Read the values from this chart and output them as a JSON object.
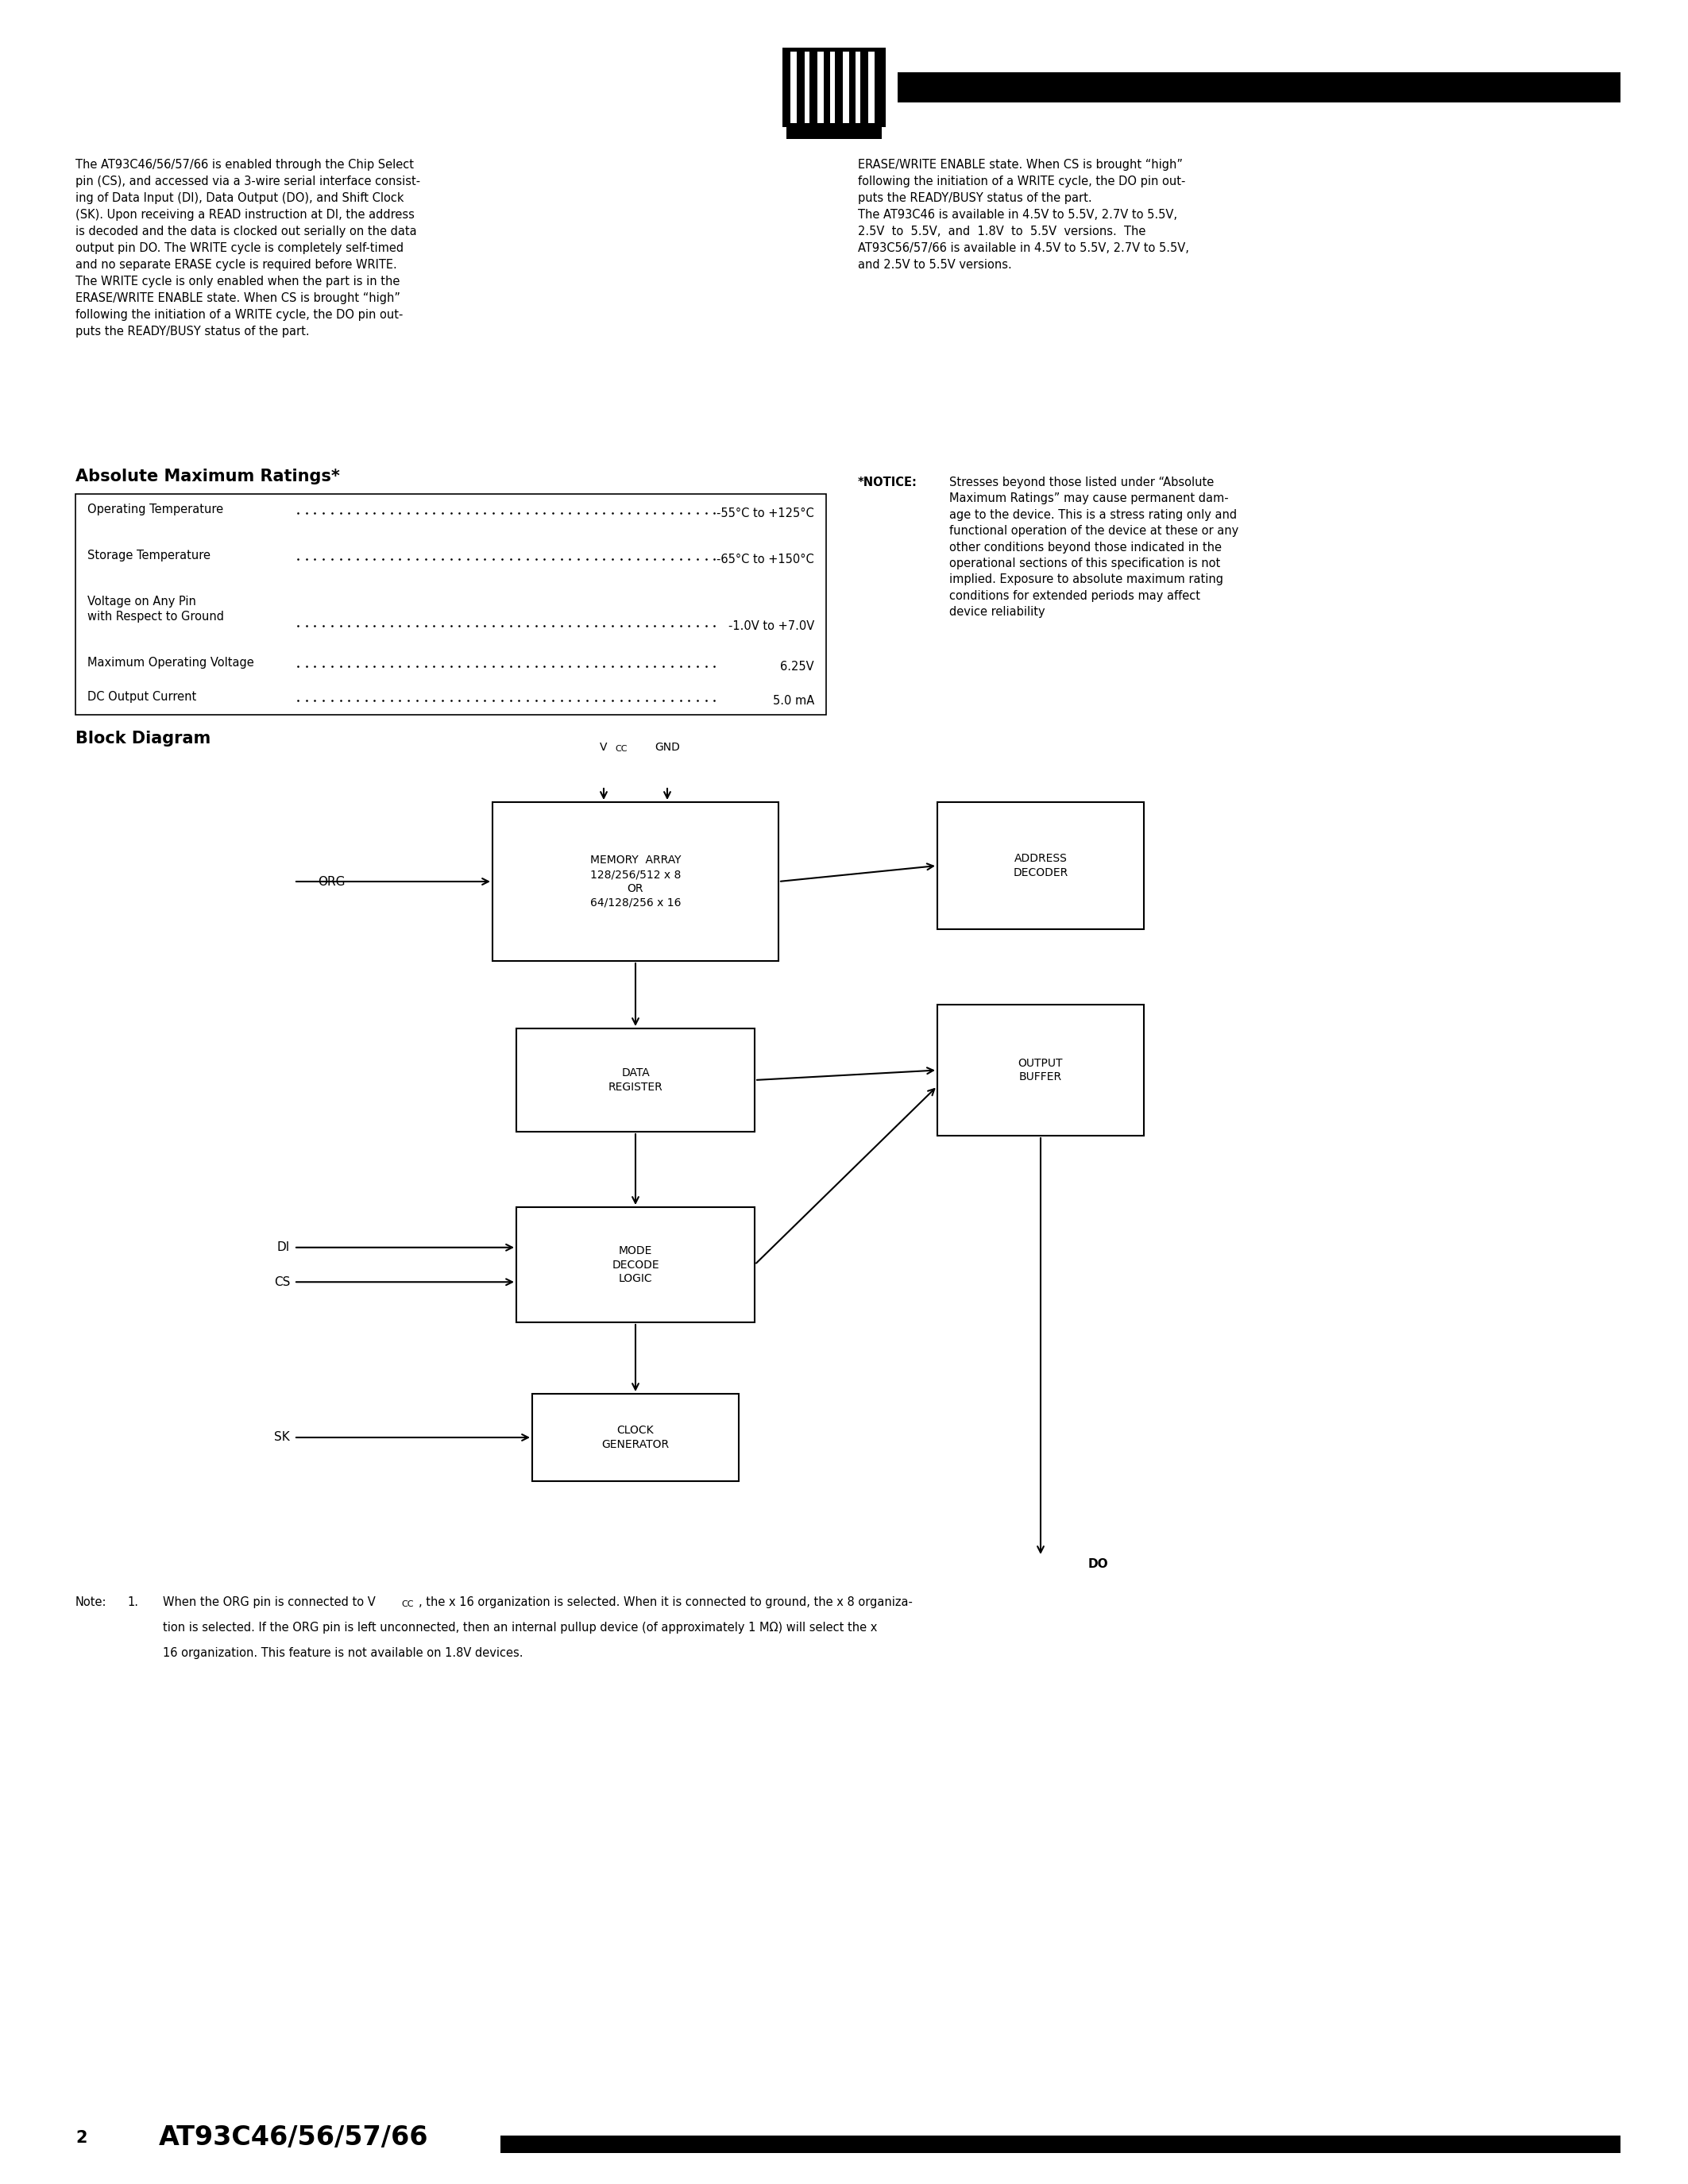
{
  "page_bg": "#ffffff",
  "body_text_col1": "The AT93C46/56/57/66 is enabled through the Chip Select\npin (CS), and accessed via a 3-wire serial interface consist-\ning of Data Input (DI), Data Output (DO), and Shift Clock\n(SK). Upon receiving a READ instruction at DI, the address\nis decoded and the data is clocked out serially on the data\noutput pin DO. The WRITE cycle is completely self-timed\nand no separate ERASE cycle is required before WRITE.\nThe WRITE cycle is only enabled when the part is in the\nERASE/WRITE ENABLE state. When CS is brought “high”\nfollowing the initiation of a WRITE cycle, the DO pin out-\nputs the READY/BUSY status of the part.",
  "body_text_col2": "ERASE/WRITE ENABLE state. When CS is brought “high”\nfollowing the initiation of a WRITE cycle, the DO pin out-\nputs the READY/BUSY status of the part.\nThe AT93C46 is available in 4.5V to 5.5V, 2.7V to 5.5V,\n2.5V  to  5.5V,  and  1.8V  to  5.5V  versions.  The\nAT93C56/57/66 is available in 4.5V to 5.5V, 2.7V to 5.5V,\nand 2.5V to 5.5V versions.",
  "abs_title": "Absolute Maximum Ratings*",
  "abs_rows": [
    [
      "Operating Temperature",
      "-55°C to +125°C"
    ],
    [
      "Storage Temperature",
      "-65°C to +150°C"
    ],
    [
      "Voltage on Any Pin\nwith Respect to Ground",
      "-1.0V to +7.0V"
    ],
    [
      "Maximum Operating Voltage",
      "6.25V"
    ],
    [
      "DC Output Current",
      "5.0 mA"
    ]
  ],
  "notice_label": "*NOTICE:",
  "notice_body": "Stresses beyond those listed under “Absolute\nMaximum Ratings” may cause permanent dam-\nage to the device. This is a stress rating only and\nfunctional operation of the device at these or any\nother conditions beyond those indicated in the\noperational sections of this specification is not\nimplied. Exposure to absolute maximum rating\nconditions for extended periods may affect\ndevice reliability",
  "block_title": "Block Diagram",
  "note_line1": "Note:    1.    When the ORG pin is connected to V",
  "note_line1b": "CC",
  "note_line1c": ", the x 16 organization is selected. When it is connected to ground, the x 8 organiza-",
  "note_line2": "               tion is selected. If the ORG pin is left unconnected, then an internal pullup device (of approximately 1 MΩ) will select the x",
  "note_line3": "               16 organization. This feature is not available on 1.8V devices.",
  "footer_number": "2",
  "footer_title": "AT93C46/56/57/66"
}
